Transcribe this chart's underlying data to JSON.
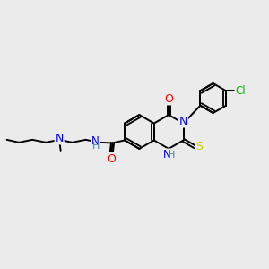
{
  "background_color": "#ebebeb",
  "bond_color": "#000000",
  "atom_colors": {
    "N": "#0000ff",
    "O": "#ff0000",
    "S": "#cccc00",
    "Cl": "#00bb00",
    "C": "#000000",
    "H": "#5f9ea0"
  },
  "figsize": [
    3.0,
    3.0
  ],
  "dpi": 100,
  "lw": 1.4,
  "r_hex": 0.62,
  "r_small": 0.53,
  "font_size": 7.5
}
